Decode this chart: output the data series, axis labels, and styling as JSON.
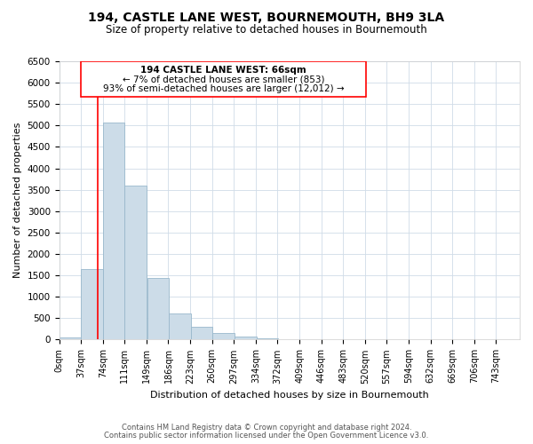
{
  "title": "194, CASTLE LANE WEST, BOURNEMOUTH, BH9 3LA",
  "subtitle": "Size of property relative to detached houses in Bournemouth",
  "xlabel": "Distribution of detached houses by size in Bournemouth",
  "ylabel": "Number of detached properties",
  "bar_color": "#ccdce8",
  "bar_edge_color": "#99b8cc",
  "bins_left": [
    0,
    37,
    74,
    111,
    149,
    186,
    223,
    260,
    297,
    334,
    372,
    409,
    446,
    483,
    520,
    557,
    594,
    632,
    669,
    706
  ],
  "bin_width": 37,
  "bar_heights": [
    60,
    1650,
    5060,
    3590,
    1430,
    610,
    300,
    150,
    80,
    30,
    10,
    5,
    0,
    0,
    0,
    0,
    0,
    0,
    0,
    0
  ],
  "tick_labels": [
    "0sqm",
    "37sqm",
    "74sqm",
    "111sqm",
    "149sqm",
    "186sqm",
    "223sqm",
    "260sqm",
    "297sqm",
    "334sqm",
    "372sqm",
    "409sqm",
    "446sqm",
    "483sqm",
    "520sqm",
    "557sqm",
    "594sqm",
    "632sqm",
    "669sqm",
    "706sqm",
    "743sqm"
  ],
  "ylim": [
    0,
    6500
  ],
  "yticks": [
    0,
    500,
    1000,
    1500,
    2000,
    2500,
    3000,
    3500,
    4000,
    4500,
    5000,
    5500,
    6000,
    6500
  ],
  "xlim": [
    0,
    780
  ],
  "property_line_x": 66,
  "ann_line1": "194 CASTLE LANE WEST: 66sqm",
  "ann_line2": "← 7% of detached houses are smaller (853)",
  "ann_line3": "93% of semi-detached houses are larger (12,012) →",
  "footer_line1": "Contains HM Land Registry data © Crown copyright and database right 2024.",
  "footer_line2": "Contains public sector information licensed under the Open Government Licence v3.0.",
  "background_color": "#ffffff",
  "grid_color": "#d0dce8",
  "title_fontsize": 10,
  "subtitle_fontsize": 8.5,
  "axis_label_fontsize": 8,
  "tick_fontsize": 7,
  "footer_fontsize": 6
}
